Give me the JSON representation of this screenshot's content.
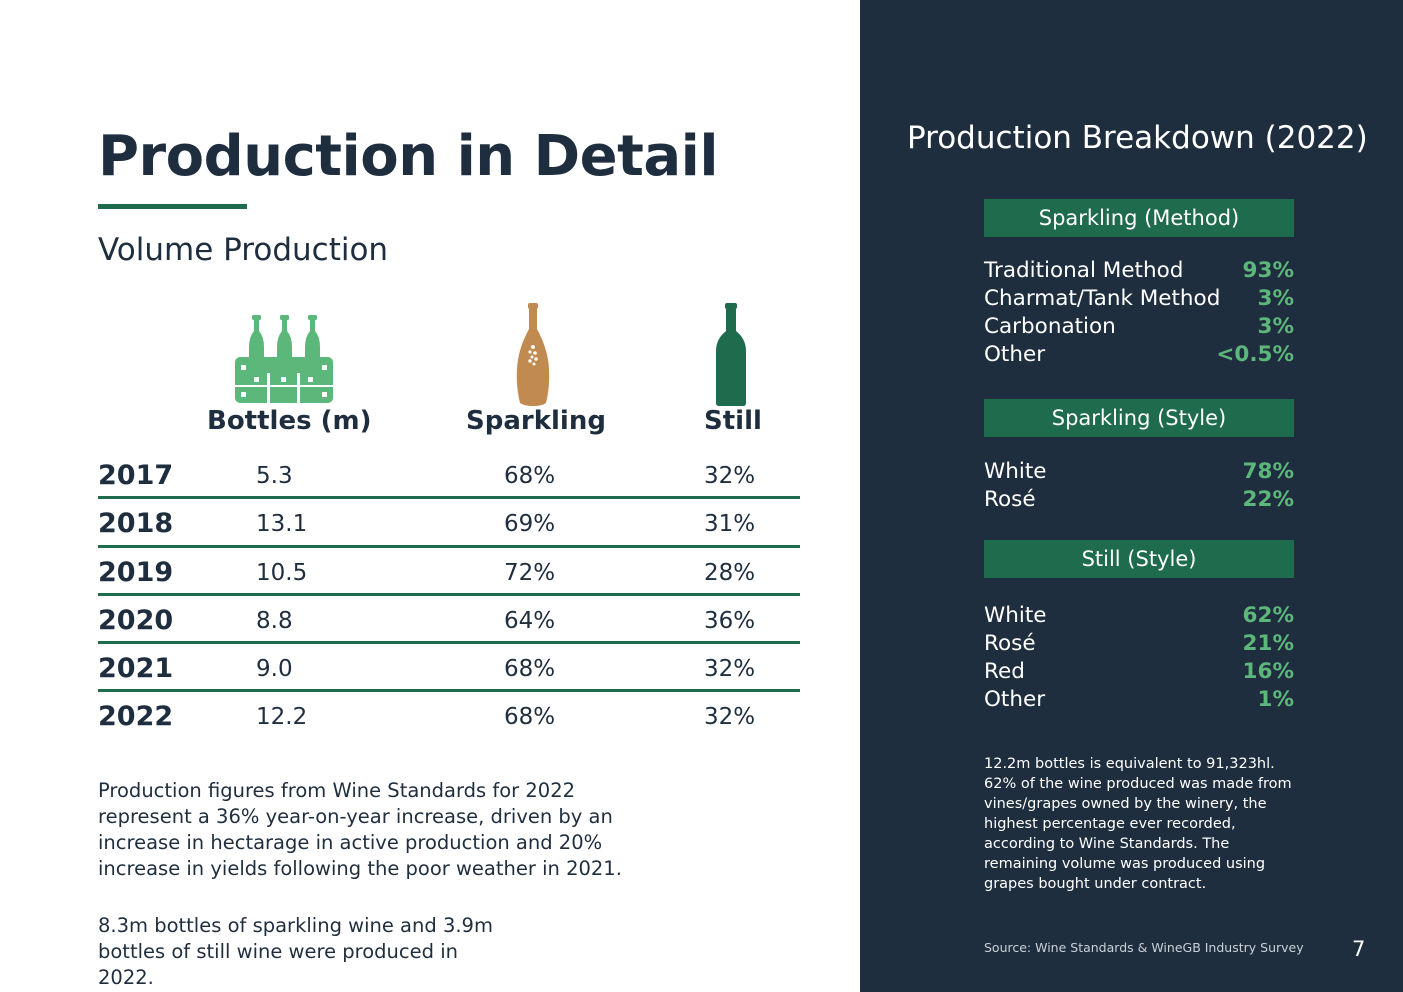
{
  "header": {
    "title": "Production in Detail",
    "subtitle": "Volume Production"
  },
  "colors": {
    "dark_navy": "#1f2e3e",
    "green": "#1f6b4e",
    "light_green": "#5cb87a",
    "bronze": "#c08a50"
  },
  "table": {
    "columns": [
      "Bottles (m)",
      "Sparkling",
      "Still"
    ],
    "icons": [
      "bottle-crate-icon",
      "sparkling-bottle-icon",
      "still-bottle-icon"
    ],
    "rows": [
      {
        "year": "2017",
        "bottles": "5.3",
        "sparkling": "68%",
        "still": "32%"
      },
      {
        "year": "2018",
        "bottles": "13.1",
        "sparkling": "69%",
        "still": "31%"
      },
      {
        "year": "2019",
        "bottles": "10.5",
        "sparkling": "72%",
        "still": "28%"
      },
      {
        "year": "2020",
        "bottles": "8.8",
        "sparkling": "64%",
        "still": "36%"
      },
      {
        "year": "2021",
        "bottles": "9.0",
        "sparkling": "68%",
        "still": "32%"
      },
      {
        "year": "2022",
        "bottles": "12.2",
        "sparkling": "68%",
        "still": "32%"
      }
    ]
  },
  "paragraphs": [
    "Production figures from Wine Standards for 2022 represent a 36% year-on-year increase, driven by an increase in hectarage in active production and 20% increase in yields following the poor weather in 2021.",
    "8.3m bottles of sparkling wine and 3.9m bottles of still wine were produced in 2022."
  ],
  "breakdown": {
    "title": "Production Breakdown (2022)",
    "sections": [
      {
        "header": "Sparkling (Method)",
        "items": [
          {
            "label": "Traditional Method",
            "value": "93%"
          },
          {
            "label": "Charmat/Tank Method",
            "value": "3%"
          },
          {
            "label": "Carbonation",
            "value": "3%"
          },
          {
            "label": "Other",
            "value": "<0.5%"
          }
        ]
      },
      {
        "header": "Sparkling (Style)",
        "items": [
          {
            "label": "White",
            "value": "78%"
          },
          {
            "label": "Rosé",
            "value": "22%"
          }
        ]
      },
      {
        "header": "Still (Style)",
        "items": [
          {
            "label": "White",
            "value": "62%"
          },
          {
            "label": "Rosé",
            "value": "21%"
          },
          {
            "label": "Red",
            "value": "16%"
          },
          {
            "label": "Other",
            "value": "1%"
          }
        ]
      }
    ],
    "note": "12.2m bottles is equivalent to 91,323hl. 62% of the wine produced was made from vines/grapes owned by the winery, the highest percentage ever recorded, according to Wine Standards. The remaining volume was produced using grapes bought under contract."
  },
  "footer": {
    "source": "Source: Wine Standards & WineGB Industry Survey",
    "page_number": "7"
  }
}
